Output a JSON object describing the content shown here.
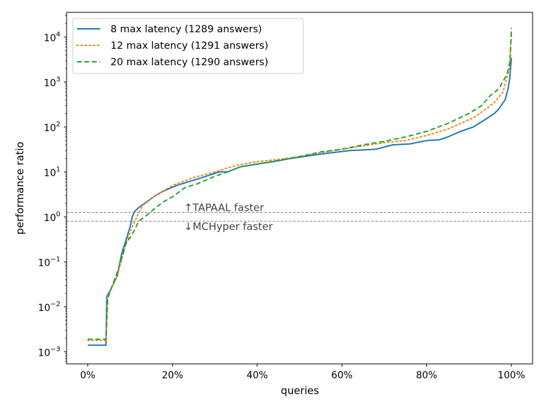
{
  "chart_data": {
    "type": "line",
    "title": "",
    "xlabel": "queries",
    "ylabel": "performance ratio",
    "xlim": [
      -5,
      105
    ],
    "ylim_log10": [
      -3.27,
      4.55
    ],
    "yscale": "log",
    "grid": false,
    "legend_placement": "top-left",
    "x_ticks": [
      0,
      20,
      40,
      60,
      80,
      100
    ],
    "x_tick_labels": [
      "0%",
      "20%",
      "40%",
      "60%",
      "80%",
      "100%"
    ],
    "y_ticks_exp": [
      -3,
      -2,
      -1,
      0,
      1,
      2,
      3,
      4
    ],
    "y_tick_base": "10",
    "reference_lines": [
      {
        "y": 1.25,
        "label": "↑TAPAAL faster"
      },
      {
        "y": 0.8,
        "label": "↓MCHyper faster"
      }
    ],
    "series": [
      {
        "name": "8 max latency (1289 answers)",
        "color": "#1f77b4",
        "style": "solid",
        "x": [
          0,
          4.3,
          4.5,
          5.5,
          7,
          8,
          9,
          10,
          10.5,
          11,
          12,
          14,
          16,
          18,
          21,
          26,
          31,
          33,
          36,
          40,
          44,
          48,
          55,
          62,
          68,
          72,
          76,
          80,
          83,
          85,
          88,
          91,
          94,
          96,
          97,
          98.5,
          99.2,
          99.6,
          100
        ],
        "y": [
          0.0014,
          0.0014,
          0.017,
          0.025,
          0.05,
          0.15,
          0.3,
          0.6,
          1.0,
          1.3,
          1.6,
          2.2,
          3,
          3.8,
          5,
          7,
          10,
          10,
          13,
          15,
          17,
          20,
          25,
          30,
          32,
          40,
          42,
          50,
          52,
          60,
          80,
          100,
          150,
          200,
          250,
          400,
          700,
          1200,
          3400
        ]
      },
      {
        "name": "12 max latency (1291 answers)",
        "color": "#ff7f0e",
        "style": "dotted",
        "x": [
          0,
          4.3,
          4.7,
          7,
          9,
          10.5,
          12,
          13,
          16,
          20,
          25,
          30,
          35,
          40,
          45,
          50,
          55,
          60,
          65,
          70,
          75,
          80,
          85,
          88,
          91,
          94,
          96,
          98,
          99.5,
          100
        ],
        "y": [
          0.0018,
          0.0018,
          0.017,
          0.05,
          0.25,
          0.6,
          1.2,
          1.8,
          3,
          5,
          7.5,
          10,
          14,
          17,
          19,
          22,
          27,
          32,
          38,
          45,
          50,
          65,
          90,
          120,
          160,
          250,
          350,
          600,
          2000,
          11000
        ]
      },
      {
        "name": "20 max latency (1290 answers)",
        "color": "#2ca02c",
        "style": "dashed",
        "x": [
          0,
          4.3,
          4.7,
          5.5,
          7,
          8,
          9,
          10,
          11,
          12,
          14,
          16,
          18,
          20,
          23,
          26,
          30,
          33,
          36,
          40,
          45,
          50,
          55,
          60,
          65,
          70,
          75,
          80,
          85,
          90,
          93,
          95,
          97,
          99,
          99.7,
          100
        ],
        "y": [
          0.0019,
          0.0019,
          0.015,
          0.025,
          0.06,
          0.12,
          0.25,
          0.35,
          0.5,
          0.8,
          1.1,
          1.6,
          2.2,
          2.8,
          4.5,
          5.5,
          8,
          10,
          13,
          15,
          18,
          22,
          28,
          32,
          40,
          48,
          60,
          80,
          120,
          200,
          300,
          500,
          700,
          1500,
          3000,
          16000
        ]
      }
    ]
  }
}
